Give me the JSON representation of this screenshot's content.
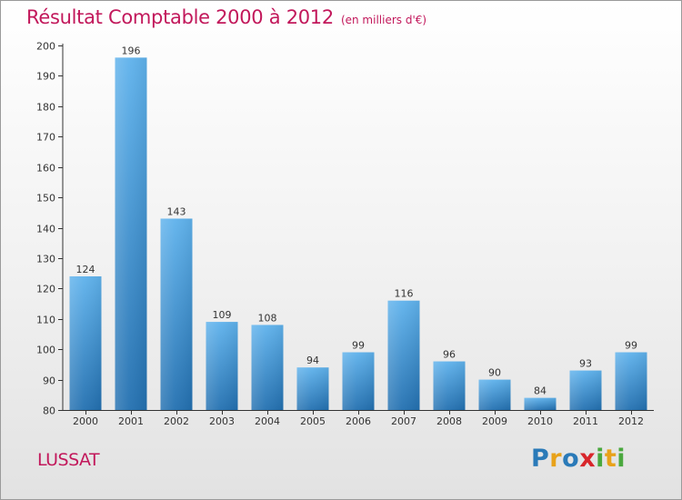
{
  "chart_data": {
    "type": "bar",
    "title": "Résultat Comptable 2000 à 2012",
    "subtitle": "(en milliers d'€)",
    "categories": [
      "2000",
      "2001",
      "2002",
      "2003",
      "2004",
      "2005",
      "2006",
      "2007",
      "2008",
      "2009",
      "2010",
      "2011",
      "2012"
    ],
    "values": [
      124,
      196,
      143,
      109,
      108,
      94,
      99,
      116,
      96,
      90,
      84,
      93,
      99
    ],
    "ylim": [
      80,
      200
    ],
    "yticks": [
      80,
      90,
      100,
      110,
      120,
      130,
      140,
      150,
      160,
      170,
      180,
      190,
      200
    ],
    "xlabel": "",
    "ylabel": "",
    "grid": false,
    "legend": "none"
  },
  "commune": "LUSSAT",
  "brand": {
    "letters": [
      "P",
      "r",
      "o",
      "x",
      "i",
      "t",
      "i"
    ],
    "colors": [
      "#2a7ab8",
      "#e8a21a",
      "#2a7ab8",
      "#d8262b",
      "#4aa83e",
      "#e8a21a",
      "#4aa83e"
    ]
  },
  "colors": {
    "bar_top": "#5fb2ec",
    "bar_bottom": "#2370b0",
    "title": "#c2185b",
    "axis": "#333333"
  }
}
